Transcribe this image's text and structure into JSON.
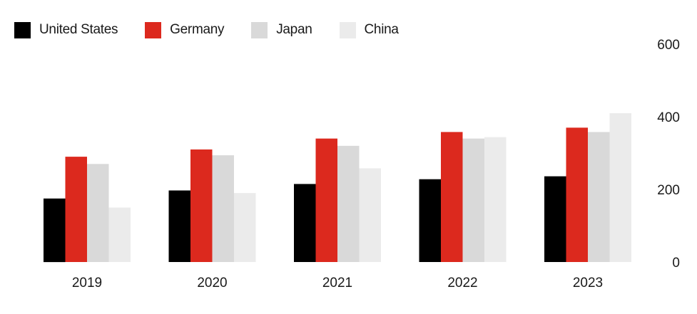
{
  "chart_data": {
    "type": "bar",
    "categories": [
      "2019",
      "2020",
      "2021",
      "2022",
      "2023"
    ],
    "series": [
      {
        "name": "United States",
        "color": "#000000",
        "values": [
          175,
          197,
          215,
          228,
          236
        ]
      },
      {
        "name": "Germany",
        "color": "#dc291e",
        "values": [
          290,
          310,
          340,
          358,
          370
        ]
      },
      {
        "name": "Japan",
        "color": "#d9d9d9",
        "values": [
          270,
          294,
          320,
          340,
          358
        ]
      },
      {
        "name": "China",
        "color": "#ebebeb",
        "values": [
          150,
          190,
          258,
          344,
          410
        ]
      }
    ],
    "y_ticks": [
      "0",
      "200",
      "400",
      "600"
    ],
    "ylim": [
      0,
      600
    ],
    "y_axis_side": "right",
    "legend_position": "top-left",
    "grid": false,
    "title": "",
    "xlabel": "",
    "ylabel": ""
  }
}
